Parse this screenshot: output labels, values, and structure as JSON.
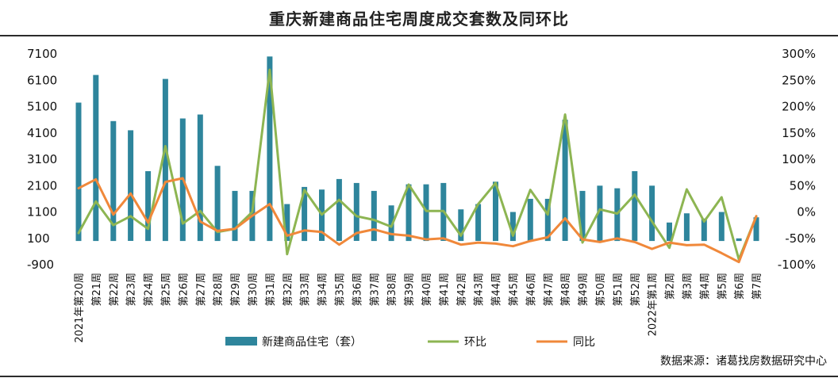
{
  "title": "重庆新建商品住宅周度成交套数及同环比",
  "source": "数据来源：诸葛找房数据研究中心",
  "colors": {
    "bar": "#2e859c",
    "mom": "#8db552",
    "yoy": "#f0883a"
  },
  "chart_data": {
    "type": "bar",
    "categories": [
      "2021年第20周",
      "第21周",
      "第22周",
      "第23周",
      "第24周",
      "第25周",
      "第26周",
      "第27周",
      "第28周",
      "第29周",
      "第30周",
      "第31周",
      "第32周",
      "第33周",
      "第34周",
      "第35周",
      "第36周",
      "第37周",
      "第38周",
      "第39周",
      "第40周",
      "第41周",
      "第42周",
      "第43周",
      "第44周",
      "第45周",
      "第46周",
      "第47周",
      "第48周",
      "第49周",
      "第50周",
      "第51周",
      "第52周",
      "2022年第1周",
      "第2周",
      "第3周",
      "第4周",
      "第5周",
      "第6周",
      "第7周"
    ],
    "series": [
      {
        "name": "新建商品住宅（套）",
        "type": "bar",
        "axis": "left",
        "values": [
          5250,
          6300,
          4550,
          4200,
          2650,
          6150,
          4650,
          4800,
          2850,
          1900,
          1900,
          7000,
          1400,
          2050,
          1950,
          2350,
          2200,
          1900,
          1350,
          2150,
          2150,
          2200,
          1200,
          1400,
          2250,
          1100,
          1600,
          1600,
          4600,
          1900,
          2100,
          2000,
          2650,
          2100,
          700,
          1050,
          850,
          1100,
          100,
          900
        ]
      },
      {
        "name": "环比",
        "type": "line",
        "axis": "right",
        "values": [
          -40,
          20,
          -25,
          -8,
          -32,
          125,
          -22,
          2,
          -38,
          -32,
          0,
          270,
          -80,
          42,
          -5,
          23,
          -8,
          -15,
          -28,
          52,
          2,
          2,
          -45,
          15,
          55,
          -45,
          42,
          -5,
          185,
          -58,
          5,
          -3,
          33,
          -18,
          -68,
          43,
          -18,
          28,
          -90,
          -8
        ]
      },
      {
        "name": "同比",
        "type": "line",
        "axis": "right",
        "values": [
          45,
          62,
          -5,
          35,
          -20,
          57,
          64,
          -18,
          -36,
          -32,
          -7,
          15,
          -45,
          -35,
          -38,
          -62,
          -40,
          -33,
          -42,
          -45,
          -52,
          -50,
          -62,
          -58,
          -60,
          -65,
          -55,
          -48,
          -12,
          -52,
          -57,
          -50,
          -57,
          -70,
          -58,
          -63,
          -62,
          -78,
          -95,
          -8
        ]
      }
    ],
    "y_left": {
      "min": -900,
      "max": 7100,
      "ticks": [
        7100,
        6100,
        5100,
        4100,
        3100,
        2100,
        1100,
        100,
        -900
      ]
    },
    "y_right": {
      "min": -100,
      "max": 300,
      "ticks": [
        "300%",
        "250%",
        "200%",
        "150%",
        "100%",
        "50%",
        "0%",
        "-50%",
        "-100%"
      ]
    },
    "legend_position": "bottom",
    "grid": false
  }
}
